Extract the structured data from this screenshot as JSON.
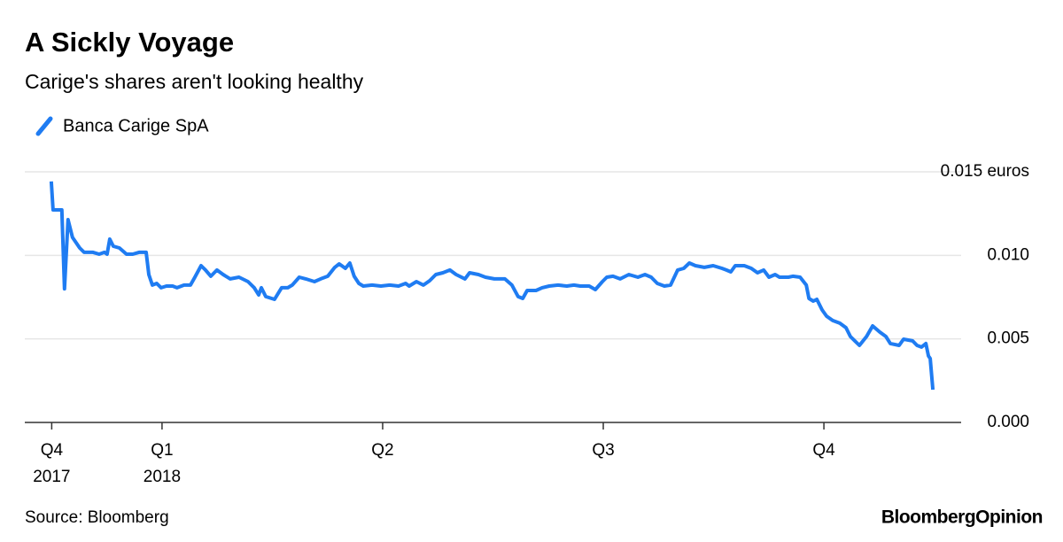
{
  "chart_data": {
    "type": "line",
    "title": "A Sickly Voyage",
    "subtitle": "Carige's shares aren't looking healthy",
    "source": "Source: Bloomberg",
    "brand": "BloombergOpinion",
    "xlim": [
      -0.622,
      3.622
    ],
    "xticks": [
      {
        "value": -0.5,
        "label": "Q4 2017"
      },
      {
        "value": 0,
        "label": "Q1 2018"
      },
      {
        "value": 1,
        "label": "Q2"
      },
      {
        "value": 2,
        "label": "Q3"
      },
      {
        "value": 3,
        "label": "Q4"
      }
    ],
    "ylim": [
      0,
      0.015
    ],
    "yticks": [
      {
        "value": 0,
        "label": "0.000"
      },
      0.005,
      {
        "value": 0.01,
        "label": "0.010"
      },
      {
        "value": 0.015,
        "label": "0.015 euros"
      }
    ],
    "grid": true,
    "legend": "top-left",
    "x": [
      -0.502,
      -0.494,
      -0.454,
      -0.442,
      -0.426,
      -0.406,
      -0.373,
      -0.353,
      -0.313,
      -0.285,
      -0.261,
      -0.249,
      -0.237,
      -0.221,
      -0.193,
      -0.161,
      -0.133,
      -0.104,
      -0.072,
      -0.06,
      -0.044,
      -0.024,
      -0.004,
      0.02,
      0.048,
      0.068,
      0.1,
      0.129,
      0.149,
      0.177,
      0.197,
      0.221,
      0.249,
      0.277,
      0.309,
      0.349,
      0.39,
      0.418,
      0.438,
      0.45,
      0.47,
      0.51,
      0.542,
      0.57,
      0.59,
      0.622,
      0.651,
      0.691,
      0.719,
      0.751,
      0.783,
      0.803,
      0.831,
      0.851,
      0.871,
      0.892,
      0.912,
      0.952,
      0.992,
      1.032,
      1.072,
      1.104,
      1.12,
      1.153,
      1.185,
      1.213,
      1.241,
      1.273,
      1.305,
      1.333,
      1.373,
      1.394,
      1.434,
      1.466,
      1.506,
      1.554,
      1.586,
      1.614,
      1.635,
      1.655,
      1.695,
      1.723,
      1.755,
      1.795,
      1.835,
      1.867,
      1.896,
      1.936,
      1.964,
      1.996,
      2.016,
      2.044,
      2.076,
      2.116,
      2.157,
      2.189,
      2.217,
      2.245,
      2.277,
      2.305,
      2.337,
      2.365,
      2.39,
      2.418,
      2.458,
      2.498,
      2.538,
      2.558,
      2.578,
      2.598,
      2.639,
      2.671,
      2.699,
      2.727,
      2.751,
      2.779,
      2.799,
      2.839,
      2.859,
      2.892,
      2.92,
      2.932,
      2.952,
      2.968,
      2.992,
      3.012,
      3.04,
      3.072,
      3.1,
      3.12,
      3.14,
      3.161,
      3.193,
      3.221,
      3.253,
      3.281,
      3.301,
      3.341,
      3.361,
      3.402,
      3.422,
      3.442,
      3.462,
      3.474,
      3.482,
      3.494
    ],
    "series": [
      {
        "name": "Banca Carige SpA",
        "color": "#1f7cf2",
        "values": [
          0.01442,
          0.01272,
          0.01272,
          0.008,
          0.01214,
          0.01108,
          0.01044,
          0.01018,
          0.01018,
          0.01007,
          0.01018,
          0.01007,
          0.01097,
          0.01055,
          0.01044,
          0.01007,
          0.01007,
          0.01018,
          0.01018,
          0.00885,
          0.00822,
          0.00832,
          0.00806,
          0.00816,
          0.00816,
          0.00806,
          0.00822,
          0.00822,
          0.00869,
          0.00938,
          0.00912,
          0.00875,
          0.00912,
          0.00885,
          0.00859,
          0.00869,
          0.00843,
          0.00806,
          0.00763,
          0.00806,
          0.00753,
          0.00737,
          0.00806,
          0.00806,
          0.00822,
          0.00869,
          0.00859,
          0.00843,
          0.00859,
          0.00875,
          0.00928,
          0.00949,
          0.00922,
          0.00954,
          0.00875,
          0.00832,
          0.00816,
          0.00822,
          0.00816,
          0.00822,
          0.00816,
          0.00832,
          0.00816,
          0.00843,
          0.00822,
          0.00848,
          0.00885,
          0.00896,
          0.00912,
          0.00885,
          0.00859,
          0.00896,
          0.00885,
          0.00869,
          0.00859,
          0.00859,
          0.00822,
          0.00753,
          0.00742,
          0.0079,
          0.0079,
          0.00806,
          0.00816,
          0.00822,
          0.00816,
          0.00822,
          0.00816,
          0.00816,
          0.00795,
          0.00843,
          0.00869,
          0.00875,
          0.00859,
          0.00885,
          0.00869,
          0.00885,
          0.00869,
          0.00832,
          0.00816,
          0.00822,
          0.00912,
          0.00922,
          0.00954,
          0.00938,
          0.00928,
          0.00938,
          0.00922,
          0.00912,
          0.00901,
          0.00938,
          0.00938,
          0.00922,
          0.00896,
          0.00912,
          0.00869,
          0.00885,
          0.00869,
          0.00869,
          0.00875,
          0.00869,
          0.00822,
          0.00742,
          0.00726,
          0.00737,
          0.00673,
          0.00636,
          0.0061,
          0.00594,
          0.00567,
          0.00514,
          0.00488,
          0.00461,
          0.00514,
          0.00578,
          0.00541,
          0.00514,
          0.00472,
          0.00461,
          0.00498,
          0.00488,
          0.00461,
          0.00451,
          0.00472,
          0.00398,
          0.00382,
          0.00196
        ]
      }
    ]
  }
}
